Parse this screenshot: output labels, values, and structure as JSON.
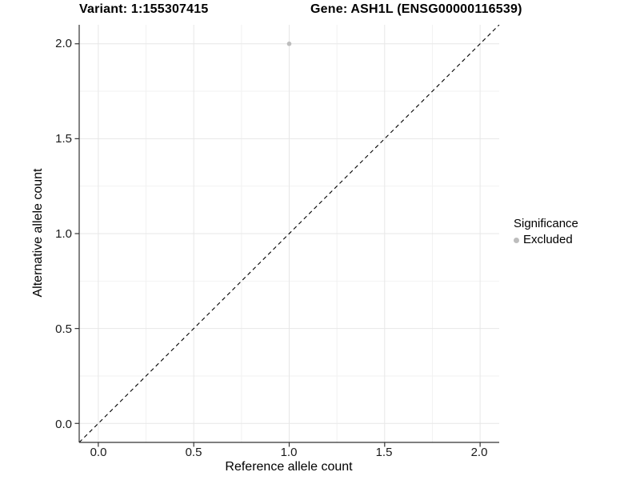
{
  "colors": {
    "background": "#ffffff",
    "grid_major": "#e7e7e7",
    "grid_minor": "#f2f2f2",
    "axis": "#333333",
    "point": "#bdbdbd"
  },
  "chart_data": {
    "type": "scatter",
    "titles": {
      "variant": "Variant: 1:155307415",
      "gene": "Gene: ASH1L (ENSG00000116539)"
    },
    "xlabel": "Reference allele count",
    "ylabel": "Alternative allele count",
    "xlim": [
      -0.1,
      2.1
    ],
    "ylim": [
      -0.1,
      2.1
    ],
    "x_ticks": [
      "0.0",
      "0.5",
      "1.0",
      "1.5",
      "2.0"
    ],
    "y_ticks": [
      "0.0",
      "0.5",
      "1.0",
      "1.5",
      "2.0"
    ],
    "grid": {
      "major": true,
      "minor": true
    },
    "identity_line": {
      "slope": 1,
      "intercept": 0,
      "style": "dashed",
      "color": "#000000"
    },
    "series": [
      {
        "name": "Excluded",
        "color": "#bdbdbd",
        "points": [
          [
            1.0,
            2.0
          ]
        ]
      }
    ],
    "legend": {
      "title": "Significance",
      "position": "right",
      "entries": [
        {
          "label": "Excluded",
          "color": "#bdbdbd"
        }
      ]
    }
  }
}
